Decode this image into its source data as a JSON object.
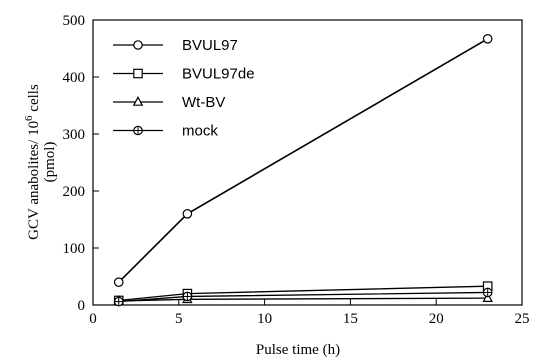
{
  "chart_data": {
    "type": "line",
    "title": "",
    "xlabel": "Pulse time (h)",
    "ylabel_main": "GCV anabolites/ 10",
    "ylabel_sup": "6",
    "ylabel_tail": " cells",
    "ylabel_unit": "(pmol)",
    "xlim": [
      0,
      25
    ],
    "ylim": [
      0,
      500
    ],
    "xticks": [
      0,
      5,
      10,
      15,
      20,
      25
    ],
    "yticks": [
      0,
      100,
      200,
      300,
      400,
      500
    ],
    "grid": false,
    "legend_position": "top-left",
    "series": [
      {
        "name": "BVUL97",
        "marker": "circle",
        "x": [
          1.5,
          5.5,
          23
        ],
        "y": [
          40,
          160,
          467
        ]
      },
      {
        "name": "BVUL97de",
        "marker": "square",
        "x": [
          1.5,
          5.5,
          23
        ],
        "y": [
          8,
          20,
          33
        ]
      },
      {
        "name": "Wt-BV",
        "marker": "triangle",
        "x": [
          1.5,
          5.5,
          23
        ],
        "y": [
          7,
          10,
          12
        ]
      },
      {
        "name": "mock",
        "marker": "circle-cross",
        "x": [
          1.5,
          5.5,
          23
        ],
        "y": [
          6,
          15,
          22
        ]
      }
    ]
  }
}
